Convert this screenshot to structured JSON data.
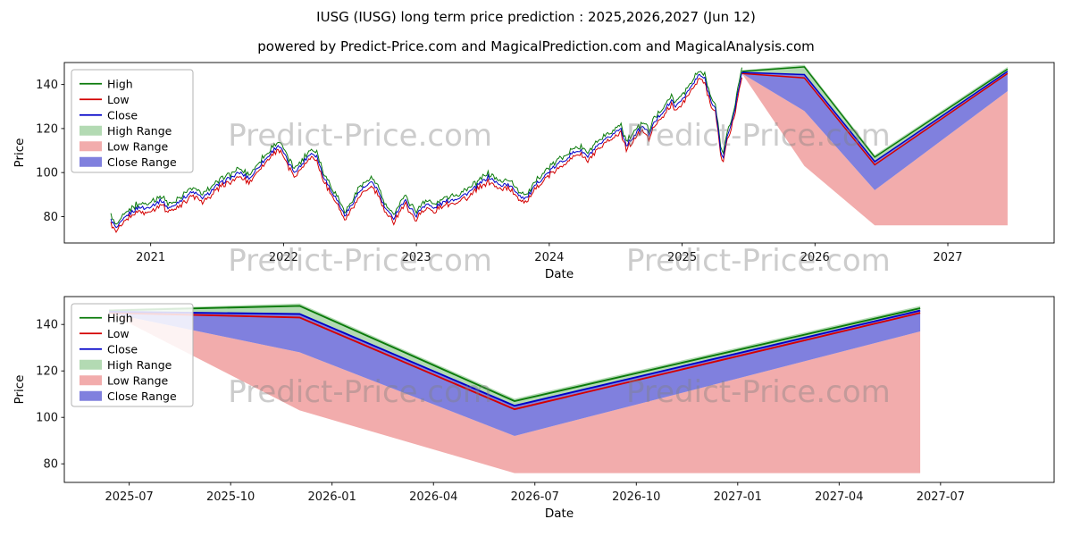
{
  "title": "IUSG (IUSG) long term price prediction : 2025,2026,2027 (Jun 12)",
  "subtitle": "powered by Predict-Price.com and MagicalPrediction.com and MagicalAnalysis.com",
  "watermark": "Predict-Price.com",
  "chart_data": [
    {
      "type": "line",
      "title": "",
      "xlabel": "Date",
      "ylabel": "Price",
      "xlim": [
        2020.35,
        2027.8
      ],
      "ylim": [
        68,
        150
      ],
      "grid": false,
      "legend_position": "upper left",
      "yticks": [
        80,
        100,
        120,
        140
      ],
      "xticks": [
        {
          "v": 2021,
          "label": "2021"
        },
        {
          "v": 2022,
          "label": "2022"
        },
        {
          "v": 2023,
          "label": "2023"
        },
        {
          "v": 2024,
          "label": "2024"
        },
        {
          "v": 2025,
          "label": "2025"
        },
        {
          "v": 2026,
          "label": "2026"
        },
        {
          "v": 2027,
          "label": "2027"
        }
      ],
      "legend": [
        {
          "key": "high",
          "label": "High",
          "swatch": "line",
          "color": "#0a7a0a"
        },
        {
          "key": "low",
          "label": "Low",
          "swatch": "line",
          "color": "#d40000"
        },
        {
          "key": "close",
          "label": "Close",
          "swatch": "line",
          "color": "#0000c8"
        },
        {
          "key": "high_range",
          "label": "High Range",
          "swatch": "fill",
          "color": "#a6d4a6",
          "opacity": 0.85
        },
        {
          "key": "low_range",
          "label": "Low Range",
          "swatch": "fill",
          "color": "#f09d9d",
          "opacity": 0.85
        },
        {
          "key": "close_range",
          "label": "Close Range",
          "swatch": "fill",
          "color": "#6a6ad8",
          "opacity": 0.85
        }
      ],
      "hl_spread": 2,
      "historical": {
        "points": [
          [
            2020.7,
            79
          ],
          [
            2020.74,
            74.5
          ],
          [
            2020.79,
            78
          ],
          [
            2020.83,
            81
          ],
          [
            2020.88,
            83
          ],
          [
            2020.92,
            84.5
          ],
          [
            2020.96,
            83.5
          ],
          [
            2021.0,
            85
          ],
          [
            2021.04,
            86
          ],
          [
            2021.08,
            87.5
          ],
          [
            2021.13,
            84
          ],
          [
            2021.17,
            84.5
          ],
          [
            2021.21,
            87
          ],
          [
            2021.25,
            88.5
          ],
          [
            2021.29,
            90.5
          ],
          [
            2021.33,
            91
          ],
          [
            2021.38,
            88.5
          ],
          [
            2021.42,
            89.5
          ],
          [
            2021.46,
            92
          ],
          [
            2021.5,
            94
          ],
          [
            2021.54,
            95.5
          ],
          [
            2021.58,
            97
          ],
          [
            2021.63,
            98.5
          ],
          [
            2021.67,
            100
          ],
          [
            2021.71,
            98.5
          ],
          [
            2021.75,
            97.5
          ],
          [
            2021.79,
            101
          ],
          [
            2021.83,
            104
          ],
          [
            2021.88,
            107
          ],
          [
            2021.92,
            110
          ],
          [
            2021.96,
            112.5
          ],
          [
            2022.0,
            109
          ],
          [
            2022.04,
            104
          ],
          [
            2022.08,
            100.5
          ],
          [
            2022.13,
            103
          ],
          [
            2022.17,
            106.5
          ],
          [
            2022.21,
            109
          ],
          [
            2022.25,
            107.5
          ],
          [
            2022.29,
            100
          ],
          [
            2022.33,
            95
          ],
          [
            2022.38,
            90
          ],
          [
            2022.42,
            85.5
          ],
          [
            2022.46,
            80.5
          ],
          [
            2022.5,
            84
          ],
          [
            2022.54,
            88.5
          ],
          [
            2022.58,
            92
          ],
          [
            2022.63,
            94
          ],
          [
            2022.67,
            95.5
          ],
          [
            2022.71,
            92
          ],
          [
            2022.75,
            85.5
          ],
          [
            2022.79,
            81.5
          ],
          [
            2022.83,
            79.5
          ],
          [
            2022.88,
            85
          ],
          [
            2022.92,
            87
          ],
          [
            2022.96,
            83.5
          ],
          [
            2023.0,
            80.5
          ],
          [
            2023.04,
            84
          ],
          [
            2023.08,
            86
          ],
          [
            2023.13,
            83.5
          ],
          [
            2023.17,
            85.5
          ],
          [
            2023.21,
            86.5
          ],
          [
            2023.25,
            87.5
          ],
          [
            2023.29,
            88
          ],
          [
            2023.33,
            89
          ],
          [
            2023.38,
            90.5
          ],
          [
            2023.42,
            92
          ],
          [
            2023.46,
            94
          ],
          [
            2023.5,
            96
          ],
          [
            2023.54,
            98
          ],
          [
            2023.58,
            96.5
          ],
          [
            2023.63,
            94
          ],
          [
            2023.67,
            95
          ],
          [
            2023.71,
            93.5
          ],
          [
            2023.75,
            91.5
          ],
          [
            2023.79,
            89
          ],
          [
            2023.83,
            88.5
          ],
          [
            2023.88,
            92.5
          ],
          [
            2023.92,
            96
          ],
          [
            2023.96,
            98
          ],
          [
            2024.0,
            100.5
          ],
          [
            2024.04,
            102.5
          ],
          [
            2024.08,
            104.5
          ],
          [
            2024.13,
            106.5
          ],
          [
            2024.17,
            108.5
          ],
          [
            2024.21,
            110
          ],
          [
            2024.25,
            109.5
          ],
          [
            2024.29,
            107
          ],
          [
            2024.33,
            110
          ],
          [
            2024.38,
            112.5
          ],
          [
            2024.42,
            114.5
          ],
          [
            2024.46,
            116.5
          ],
          [
            2024.5,
            118.5
          ],
          [
            2024.54,
            120
          ],
          [
            2024.58,
            112.5
          ],
          [
            2024.63,
            116
          ],
          [
            2024.67,
            119
          ],
          [
            2024.71,
            121
          ],
          [
            2024.75,
            117.5
          ],
          [
            2024.79,
            122.5
          ],
          [
            2024.83,
            126
          ],
          [
            2024.88,
            129.5
          ],
          [
            2024.92,
            132.5
          ],
          [
            2024.96,
            130
          ],
          [
            2025.0,
            133.5
          ],
          [
            2025.04,
            136.5
          ],
          [
            2025.08,
            140
          ],
          [
            2025.13,
            144.5
          ],
          [
            2025.17,
            142.5
          ],
          [
            2025.21,
            134
          ],
          [
            2025.25,
            129
          ],
          [
            2025.27,
            120
          ],
          [
            2025.29,
            110
          ],
          [
            2025.31,
            106.5
          ],
          [
            2025.33,
            114
          ],
          [
            2025.36,
            120
          ],
          [
            2025.38,
            125
          ],
          [
            2025.4,
            130
          ],
          [
            2025.42,
            136
          ],
          [
            2025.44,
            142
          ],
          [
            2025.45,
            145.5
          ]
        ]
      },
      "prediction": {
        "x": [
          2025.45,
          2025.92,
          2026.45,
          2027.45
        ],
        "x_labels": [
          "2025-06",
          "2025-12",
          "2026-06",
          "2027-06"
        ],
        "high": [
          146,
          148,
          107,
          147
        ],
        "low": [
          145,
          143,
          103.5,
          145
        ],
        "close": [
          145.5,
          144.5,
          105,
          146
        ],
        "high_range_upper": [
          146.5,
          149,
          108,
          148
        ],
        "close_range_lower": [
          145,
          128,
          92,
          137
        ],
        "low_range_lower": [
          145,
          103,
          76,
          76
        ]
      }
    },
    {
      "type": "line",
      "title": "",
      "xlabel": "Date",
      "ylabel": "Price",
      "xlim": [
        2025.34,
        2027.78
      ],
      "ylim": [
        72,
        152
      ],
      "grid": false,
      "legend_position": "upper left",
      "yticks": [
        80,
        100,
        120,
        140
      ],
      "xticks": [
        {
          "v": 2025.5,
          "label": "2025-07"
        },
        {
          "v": 2025.75,
          "label": "2025-10"
        },
        {
          "v": 2026.0,
          "label": "2026-01"
        },
        {
          "v": 2026.25,
          "label": "2026-04"
        },
        {
          "v": 2026.5,
          "label": "2026-07"
        },
        {
          "v": 2026.75,
          "label": "2026-10"
        },
        {
          "v": 2027.0,
          "label": "2027-01"
        },
        {
          "v": 2027.25,
          "label": "2027-04"
        },
        {
          "v": 2027.5,
          "label": "2027-07"
        }
      ],
      "legend": [
        {
          "key": "high",
          "label": "High",
          "swatch": "line",
          "color": "#0a7a0a"
        },
        {
          "key": "low",
          "label": "Low",
          "swatch": "line",
          "color": "#d40000"
        },
        {
          "key": "close",
          "label": "Close",
          "swatch": "line",
          "color": "#0000c8"
        },
        {
          "key": "high_range",
          "label": "High Range",
          "swatch": "fill",
          "color": "#a6d4a6",
          "opacity": 0.85
        },
        {
          "key": "low_range",
          "label": "Low Range",
          "swatch": "fill",
          "color": "#f09d9d",
          "opacity": 0.85
        },
        {
          "key": "close_range",
          "label": "Close Range",
          "swatch": "fill",
          "color": "#6a6ad8",
          "opacity": 0.85
        }
      ],
      "prediction": {
        "x": [
          2025.45,
          2025.92,
          2026.45,
          2027.45
        ],
        "x_labels": [
          "2025-06",
          "2025-12",
          "2026-06",
          "2027-06"
        ],
        "high": [
          146,
          148,
          107,
          147
        ],
        "low": [
          145,
          143,
          103.5,
          145
        ],
        "close": [
          145.5,
          144.5,
          105,
          146
        ],
        "high_range_upper": [
          146.5,
          149,
          108,
          148
        ],
        "close_range_lower": [
          145,
          128,
          92,
          137
        ],
        "low_range_lower": [
          145,
          103,
          76,
          76
        ]
      }
    }
  ]
}
